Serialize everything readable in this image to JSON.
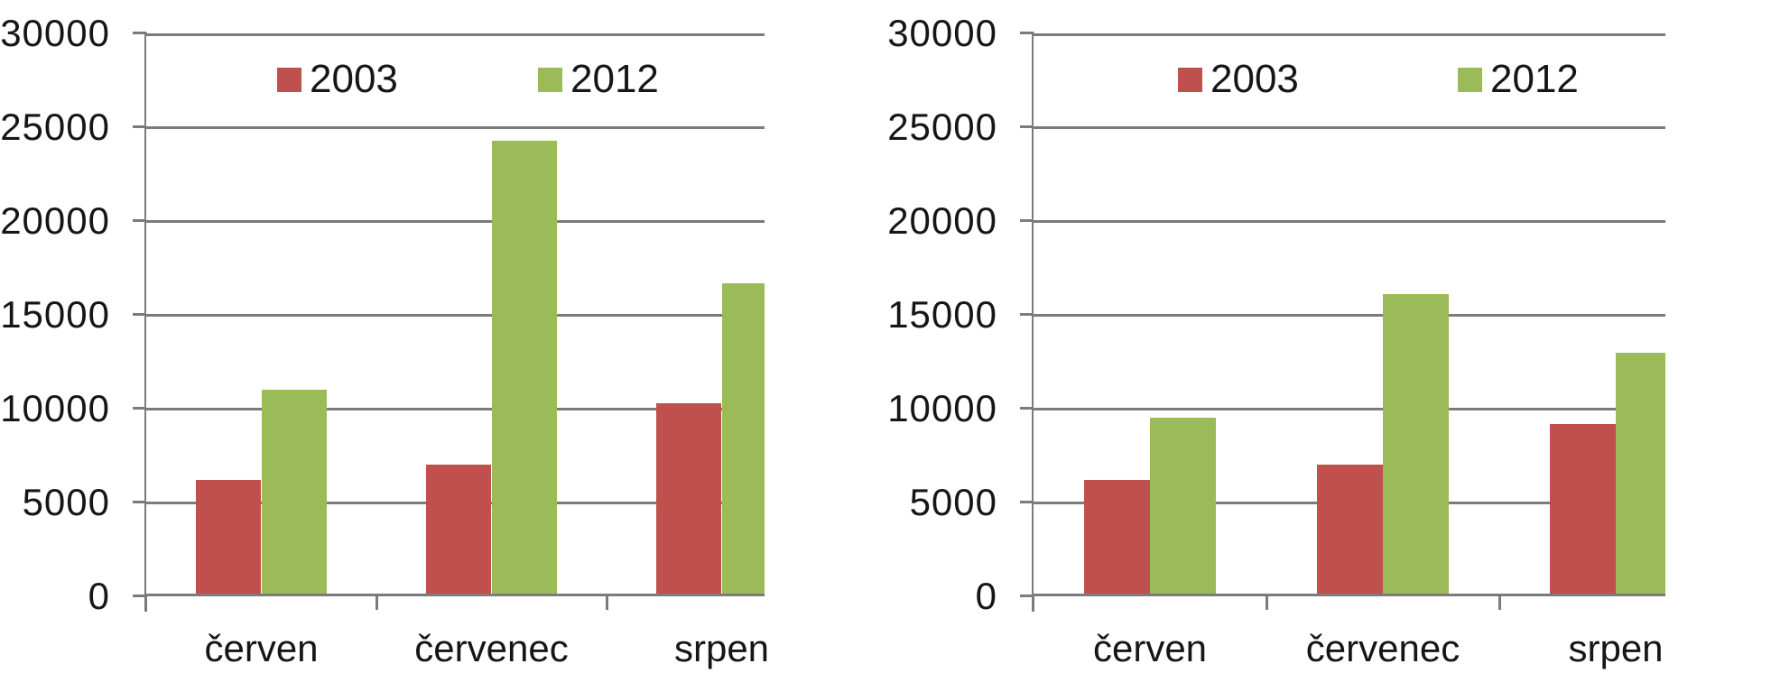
{
  "chart_data": [
    {
      "type": "bar",
      "title": "",
      "position": "left",
      "categories": [
        "červen",
        "červenec",
        "srpen"
      ],
      "series": [
        {
          "name": "2003",
          "color": "#c0504d",
          "values": [
            6200,
            7000,
            10300
          ]
        },
        {
          "name": "2012",
          "color": "#9bbb59",
          "values": [
            11000,
            24300,
            16700
          ]
        }
      ],
      "xlabel": "",
      "ylabel": "",
      "ylim": [
        0,
        30000
      ],
      "y_tick_step": 5000,
      "y_tick_labels": [
        "0",
        "5000",
        "10000",
        "15000",
        "20000",
        "25000",
        "30000"
      ],
      "grid": true,
      "grid_color": "#7b7b7b",
      "legend_position": "top-inside"
    },
    {
      "type": "bar",
      "title": "",
      "position": "right",
      "categories": [
        "červen",
        "červenec",
        "srpen"
      ],
      "series": [
        {
          "name": "2003",
          "color": "#c0504d",
          "values": [
            6200,
            7000,
            9200
          ]
        },
        {
          "name": "2012",
          "color": "#9bbb59",
          "values": [
            9500,
            16100,
            13000
          ]
        }
      ],
      "xlabel": "",
      "ylabel": "",
      "ylim": [
        0,
        30000
      ],
      "y_tick_step": 5000,
      "y_tick_labels": [
        "0",
        "5000",
        "10000",
        "15000",
        "20000",
        "25000",
        "30000"
      ],
      "grid": true,
      "grid_color": "#7b7b7b",
      "legend_position": "top-inside"
    }
  ]
}
